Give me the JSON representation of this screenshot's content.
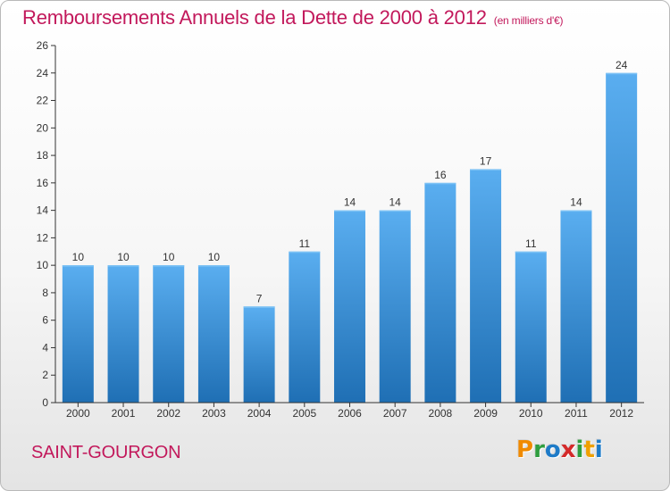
{
  "header": {
    "title": "Remboursements Annuels de la Dette de 2000 à 2012",
    "unit": "(en milliers d'€)"
  },
  "footer": {
    "commune": "SAINT-GOURGON",
    "brand_letters": [
      "P",
      "r",
      "o",
      "x",
      "i",
      "t",
      "i"
    ],
    "brand_colors": [
      "#f08a00",
      "#2f9e3f",
      "#1e7bc8",
      "#d42a2a",
      "#2f9e3f",
      "#f0a000",
      "#1e7bc8"
    ]
  },
  "colors": {
    "title": "#c2185b",
    "bar_top": "#5aaef0",
    "bar_bottom": "#1f6fb4",
    "axis": "#333333",
    "grid": "#e0e0e0"
  },
  "chart_data": {
    "type": "bar",
    "title": "Remboursements Annuels de la Dette de 2000 à 2012",
    "subtitle": "(en milliers d'€)",
    "xlabel": "",
    "ylabel": "",
    "categories": [
      "2000",
      "2001",
      "2002",
      "2003",
      "2004",
      "2005",
      "2006",
      "2007",
      "2008",
      "2009",
      "2010",
      "2011",
      "2012"
    ],
    "values": [
      10,
      10,
      10,
      10,
      7,
      11,
      14,
      14,
      16,
      17,
      11,
      14,
      24
    ],
    "ylim": [
      0,
      26
    ],
    "yticks": [
      0,
      2,
      4,
      6,
      8,
      10,
      12,
      14,
      16,
      18,
      20,
      22,
      24,
      26
    ],
    "data_labels": true,
    "grid": false,
    "legend": "none"
  }
}
